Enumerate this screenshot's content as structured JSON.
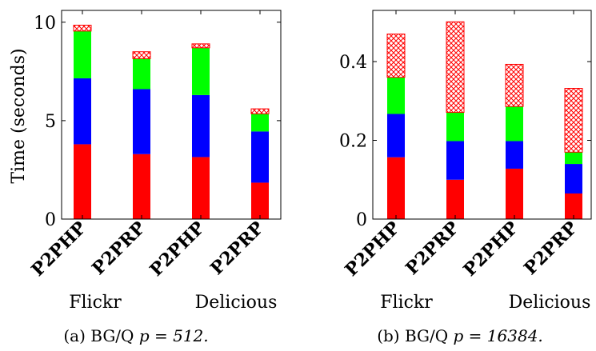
{
  "chart_data": [
    {
      "type": "bar",
      "stacked": true,
      "categories": [
        "P2PHP",
        "P2PRP",
        "P2PHP",
        "P2PRP"
      ],
      "groups": [
        "Flickr",
        "Delicious"
      ],
      "ylabel": "Time (seconds)",
      "ylim": [
        0,
        10.6
      ],
      "yticks": [
        "0",
        "5",
        "10"
      ],
      "caption": "(a) BG/Q p = 512.",
      "caption_prefix": "(a) BG/Q ",
      "caption_math": "p = 512.",
      "series": [
        {
          "color": "#ff0000",
          "pattern": "solid",
          "values": [
            3.8,
            3.3,
            3.15,
            1.85
          ]
        },
        {
          "color": "#0000ff",
          "pattern": "solid",
          "values": [
            3.35,
            3.3,
            3.15,
            2.6
          ]
        },
        {
          "color": "#00ff00",
          "pattern": "solid",
          "values": [
            2.4,
            1.55,
            2.4,
            0.9
          ]
        },
        {
          "color": "#ff0000",
          "pattern": "crosshatch",
          "values": [
            0.3,
            0.35,
            0.2,
            0.25
          ]
        }
      ]
    },
    {
      "type": "bar",
      "stacked": true,
      "categories": [
        "P2PHP",
        "P2PRP",
        "P2PHP",
        "P2PRP"
      ],
      "groups": [
        "Flickr",
        "Delicious"
      ],
      "ylabel": "",
      "ylim": [
        0,
        0.53
      ],
      "yticks": [
        "0",
        "0.2",
        "0.4"
      ],
      "caption": "(b) BG/Q p = 16384.",
      "caption_prefix": "(b) BG/Q ",
      "caption_math": "p = 16384.",
      "series": [
        {
          "color": "#ff0000",
          "pattern": "solid",
          "values": [
            0.157,
            0.1,
            0.128,
            0.065
          ]
        },
        {
          "color": "#0000ff",
          "pattern": "solid",
          "values": [
            0.11,
            0.098,
            0.07,
            0.075
          ]
        },
        {
          "color": "#00ff00",
          "pattern": "solid",
          "values": [
            0.093,
            0.073,
            0.088,
            0.03
          ]
        },
        {
          "color": "#ff0000",
          "pattern": "crosshatch",
          "values": [
            0.11,
            0.23,
            0.107,
            0.162
          ]
        }
      ]
    }
  ]
}
